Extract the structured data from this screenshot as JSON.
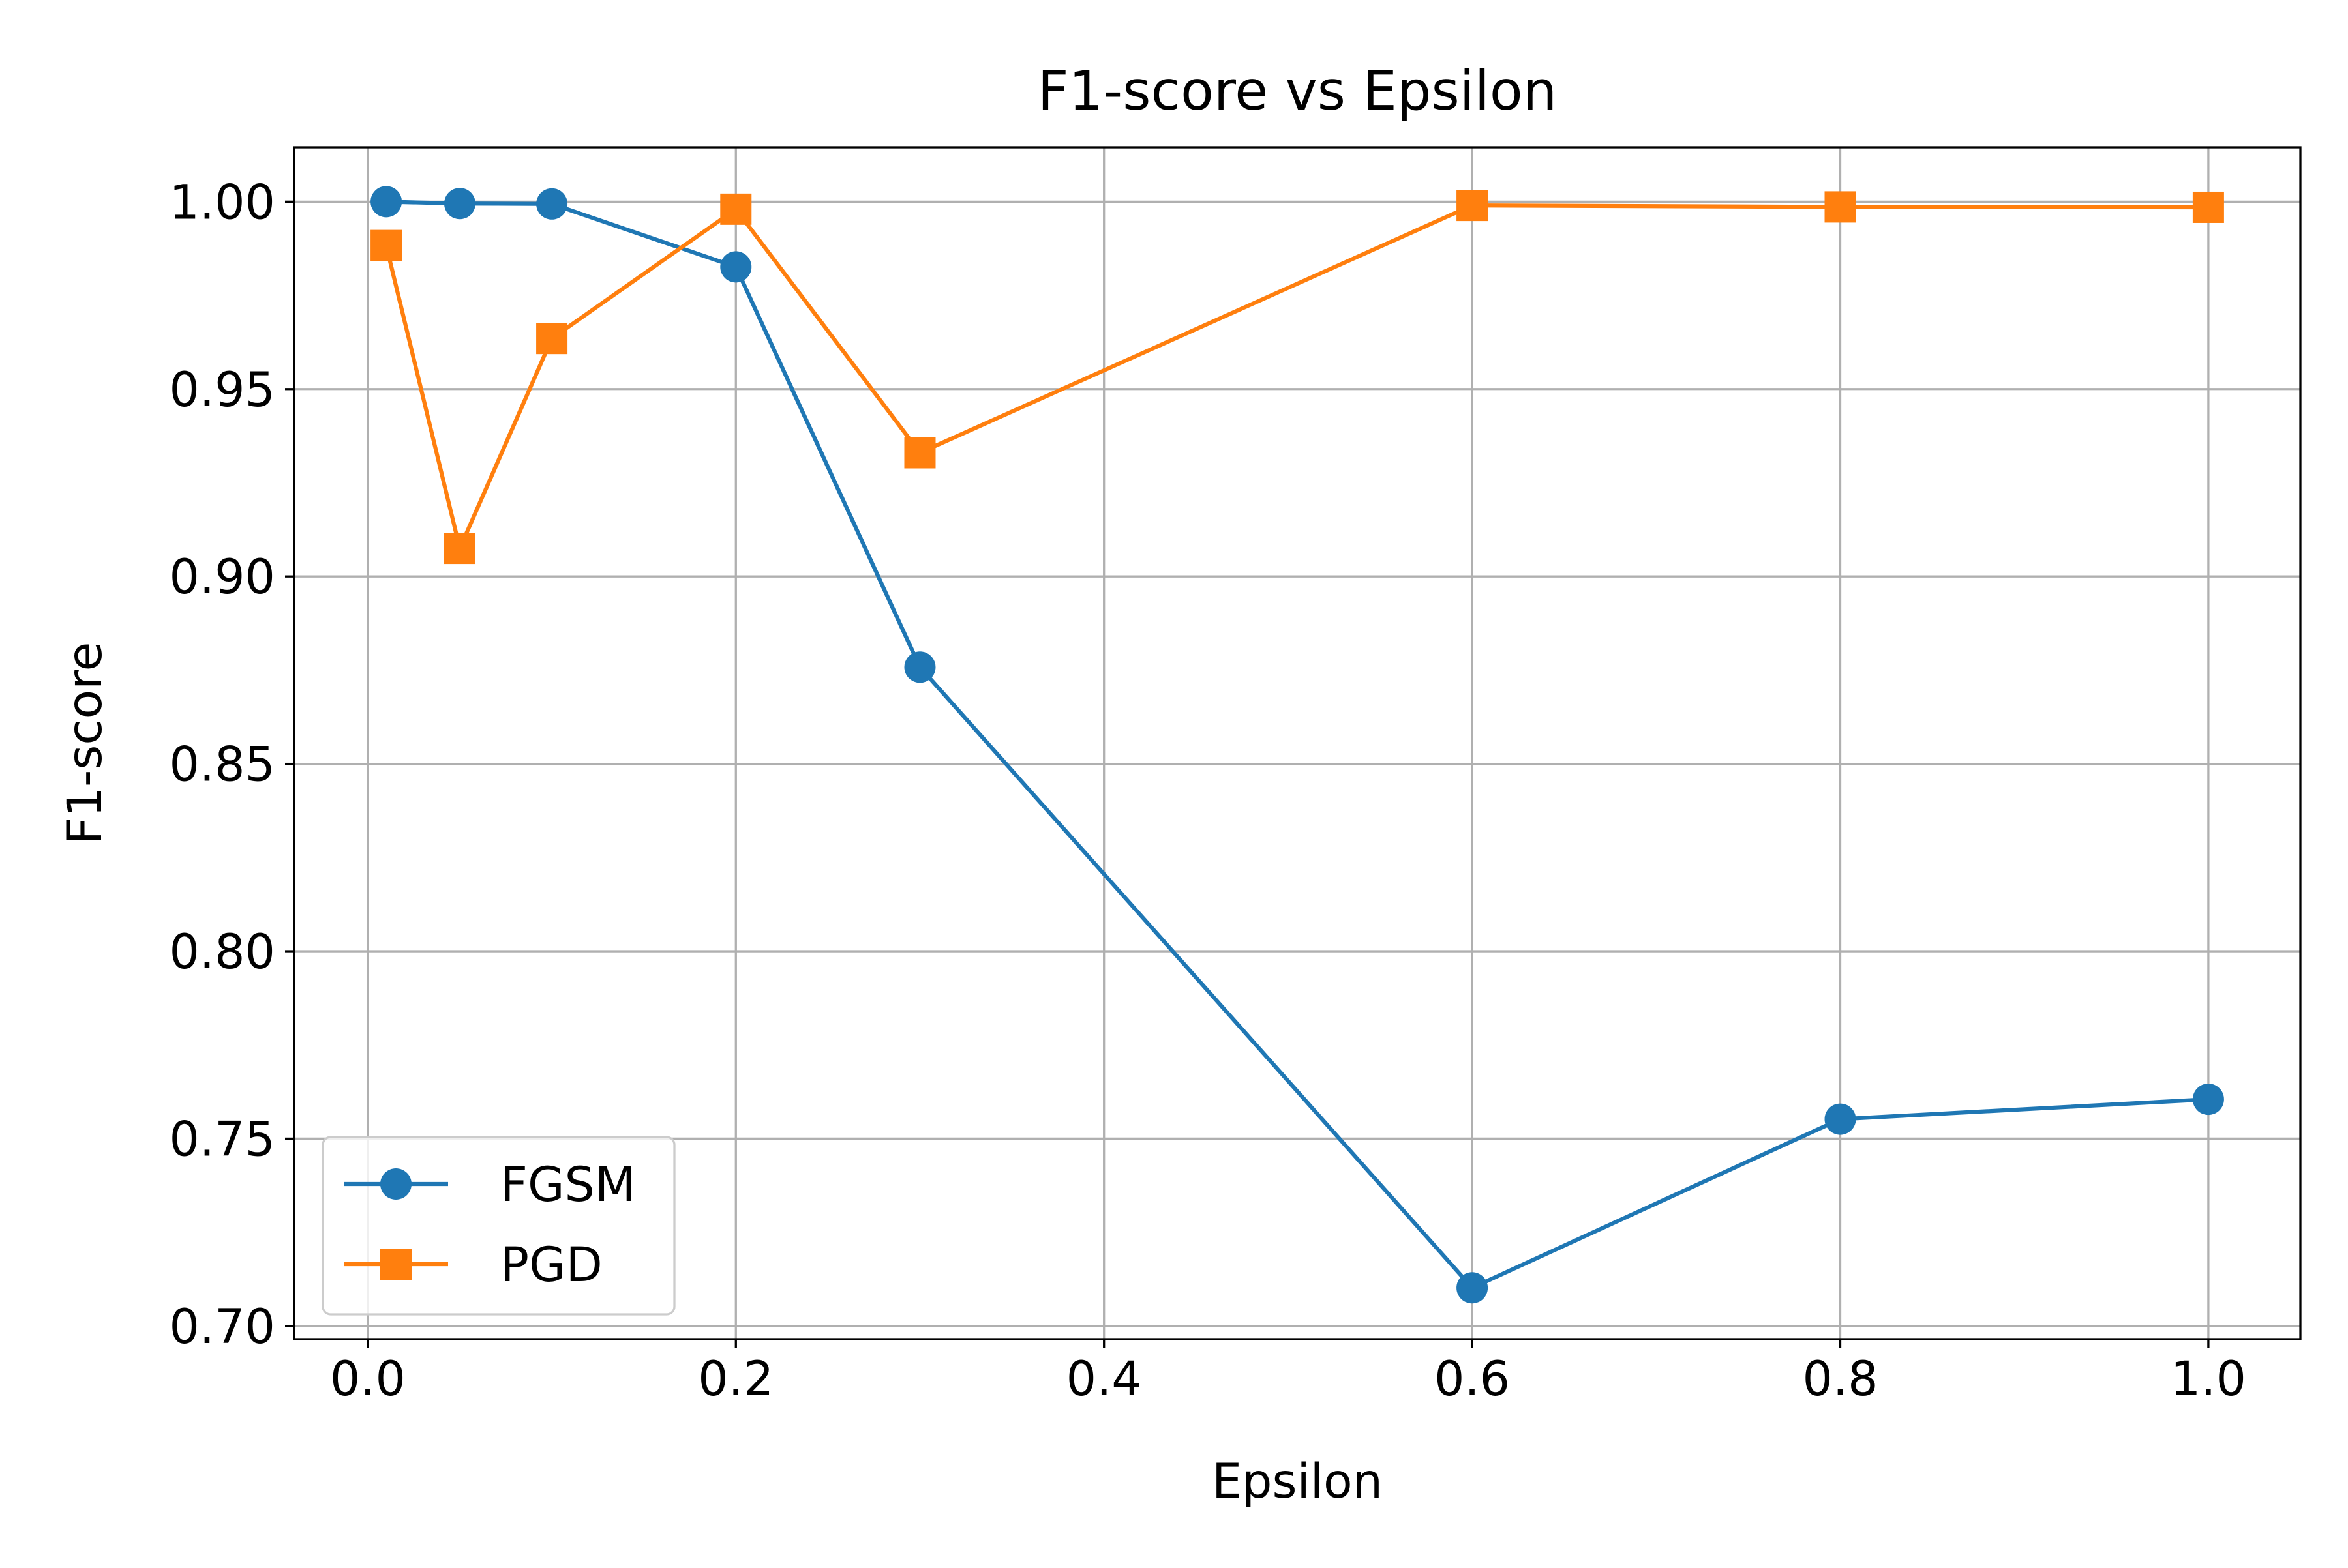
{
  "chart_data": {
    "type": "line",
    "title": "F1-score vs Epsilon",
    "xlabel": "Epsilon",
    "ylabel": "F1-score",
    "xlim": [
      -0.04,
      1.05
    ],
    "ylim": [
      0.6965,
      1.0145
    ],
    "x_ticks": [
      0.0,
      0.2,
      0.4,
      0.6,
      0.8,
      1.0
    ],
    "x_tick_labels": [
      "0.0",
      "0.2",
      "0.4",
      "0.6",
      "0.8",
      "1.0"
    ],
    "y_ticks": [
      0.7,
      0.75,
      0.8,
      0.85,
      0.9,
      0.95,
      1.0
    ],
    "y_tick_labels": [
      "0.70",
      "0.75",
      "0.80",
      "0.85",
      "0.90",
      "0.95",
      "1.00"
    ],
    "grid": true,
    "legend_position": "lower-left",
    "x": [
      0.01,
      0.05,
      0.1,
      0.2,
      0.3,
      0.6,
      0.8,
      1.0
    ],
    "series": [
      {
        "name": "FGSM",
        "marker": "circle",
        "color": "#1f77b4",
        "values": [
          1.0,
          0.9995,
          0.9994,
          0.9826,
          0.8758,
          0.7102,
          0.7552,
          0.7605
        ]
      },
      {
        "name": "PGD",
        "marker": "square",
        "color": "#ff7f0e",
        "values": [
          0.9883,
          0.9075,
          0.9635,
          0.998,
          0.933,
          0.999,
          0.9986,
          0.9985
        ]
      }
    ]
  }
}
